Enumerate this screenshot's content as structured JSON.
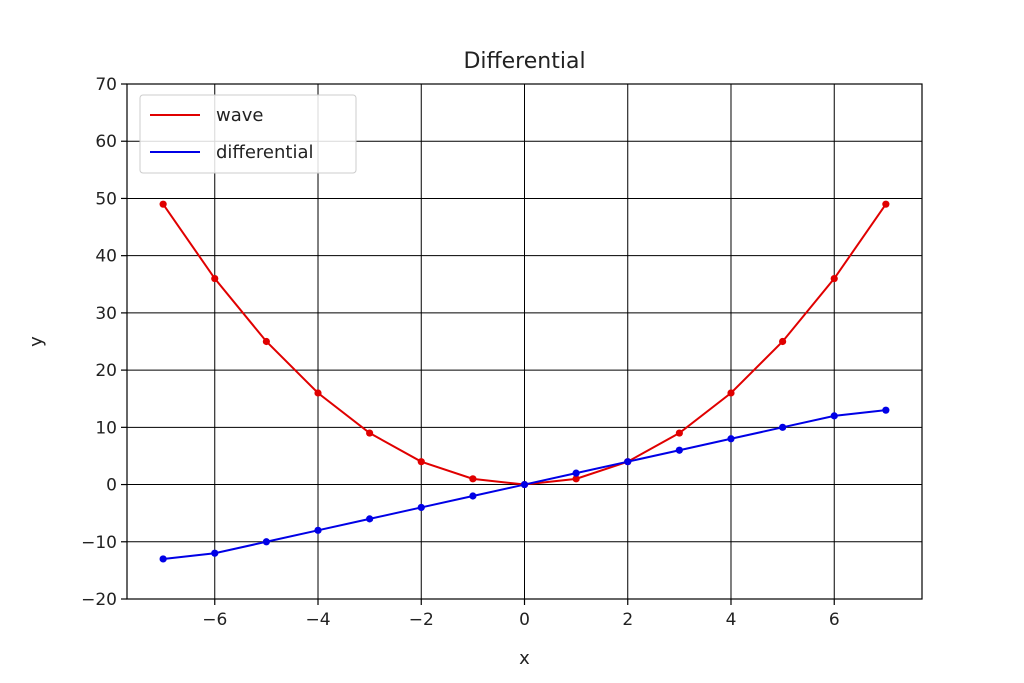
{
  "chart_data": {
    "type": "line",
    "title": "Differential",
    "xlabel": "x",
    "ylabel": "y",
    "xlim": [
      -7.7,
      7.7
    ],
    "ylim": [
      -20,
      70
    ],
    "xticks": [
      -6,
      -4,
      -2,
      0,
      2,
      4,
      6
    ],
    "xtick_labels": [
      "−6",
      "−4",
      "−2",
      "0",
      "2",
      "4",
      "6"
    ],
    "yticks": [
      -20,
      -10,
      0,
      10,
      20,
      30,
      40,
      50,
      60,
      70
    ],
    "ytick_labels": [
      "−20",
      "−10",
      "0",
      "10",
      "20",
      "30",
      "40",
      "50",
      "60",
      "70"
    ],
    "grid": true,
    "legend_position": "top-left",
    "x": [
      -7,
      -6,
      -5,
      -4,
      -3,
      -2,
      -1,
      0,
      1,
      2,
      3,
      4,
      5,
      6,
      7
    ],
    "series": [
      {
        "name": "wave",
        "color": "#e00000",
        "values": [
          49,
          36,
          25,
          16,
          9,
          4,
          1,
          0,
          1,
          4,
          9,
          16,
          25,
          36,
          49
        ]
      },
      {
        "name": "differential",
        "color": "#0000e6",
        "values": [
          -13,
          -12,
          -10,
          -8,
          -6,
          -4,
          -2,
          0,
          2,
          4,
          6,
          8,
          10,
          12,
          13
        ]
      }
    ]
  }
}
